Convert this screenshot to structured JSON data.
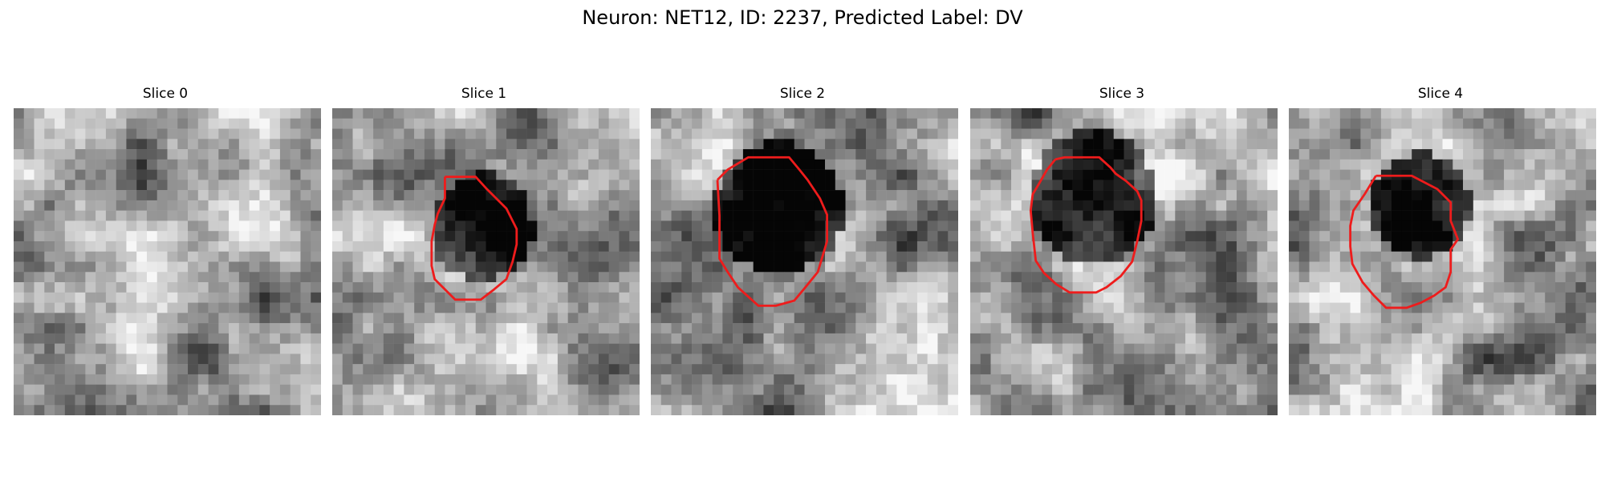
{
  "figure": {
    "title": "Neuron: NET12, ID: 2237, Predicted Label: DV"
  },
  "panels": [
    {
      "title": "Slice 0",
      "has_outline": false
    },
    {
      "title": "Slice 1",
      "has_outline": true
    },
    {
      "title": "Slice 2",
      "has_outline": true
    },
    {
      "title": "Slice 3",
      "has_outline": true
    },
    {
      "title": "Slice 4",
      "has_outline": true
    }
  ],
  "colors": {
    "outline": "#ee1c1c",
    "background": "#ffffff"
  },
  "image": {
    "colormap": "grayscale"
  }
}
